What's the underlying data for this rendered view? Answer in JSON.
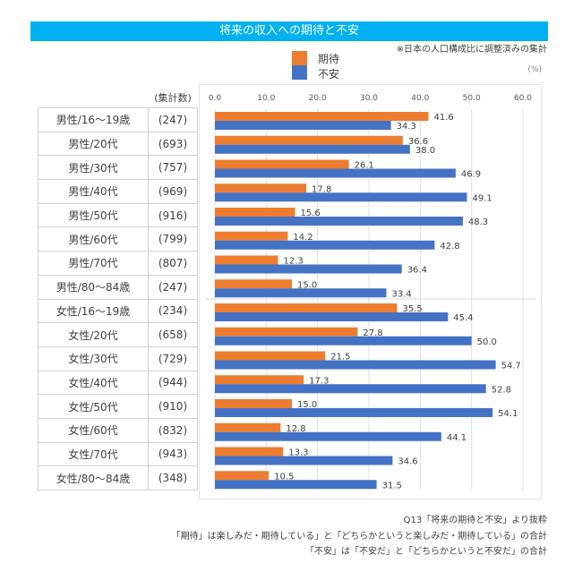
{
  "header": {
    "title": "将来の収入への期待と不安",
    "note": "※日本の人口構成比に調整済みの集計",
    "unit": "(%)",
    "count_header": "(集計数)"
  },
  "legend": [
    {
      "label": "期待",
      "color": "#ed7d31"
    },
    {
      "label": "不安",
      "color": "#4472c4"
    }
  ],
  "rows": [
    {
      "group": "男性/16～19歳",
      "n": "(247)"
    },
    {
      "group": "男性/20代",
      "n": "(693)"
    },
    {
      "group": "男性/30代",
      "n": "(757)"
    },
    {
      "group": "男性/40代",
      "n": "(969)"
    },
    {
      "group": "男性/50代",
      "n": "(916)"
    },
    {
      "group": "男性/60代",
      "n": "(799)"
    },
    {
      "group": "男性/70代",
      "n": "(807)"
    },
    {
      "group": "男性/80～84歳",
      "n": "(247)"
    },
    {
      "group": "女性/16～19歳",
      "n": "(234)"
    },
    {
      "group": "女性/20代",
      "n": "(658)"
    },
    {
      "group": "女性/30代",
      "n": "(729)"
    },
    {
      "group": "女性/40代",
      "n": "(944)"
    },
    {
      "group": "女性/50代",
      "n": "(910)"
    },
    {
      "group": "女性/60代",
      "n": "(832)"
    },
    {
      "group": "女性/70代",
      "n": "(943)"
    },
    {
      "group": "女性/80～84歳",
      "n": "(348)"
    }
  ],
  "chart_data": {
    "type": "bar",
    "orientation": "horizontal",
    "title": "将来の収入への期待と不安",
    "xlabel": "(%)",
    "ylabel": "",
    "xlim": [
      0,
      60
    ],
    "xticks": [
      "0.0",
      "10.0",
      "20.0",
      "30.0",
      "40.0",
      "50.0",
      "60.0"
    ],
    "grid": true,
    "legend_position": "top-center",
    "categories": [
      "男性/16～19歳",
      "男性/20代",
      "男性/30代",
      "男性/40代",
      "男性/50代",
      "男性/60代",
      "男性/70代",
      "男性/80～84歳",
      "女性/16～19歳",
      "女性/20代",
      "女性/30代",
      "女性/40代",
      "女性/50代",
      "女性/60代",
      "女性/70代",
      "女性/80～84歳"
    ],
    "series": [
      {
        "name": "期待",
        "color": "#ed7d31",
        "values": [
          41.6,
          36.6,
          26.1,
          17.8,
          15.6,
          14.2,
          12.3,
          15.0,
          35.5,
          27.8,
          21.5,
          17.3,
          15.0,
          12.8,
          13.3,
          10.5
        ]
      },
      {
        "name": "不安",
        "color": "#4472c4",
        "values": [
          34.3,
          38.0,
          46.9,
          49.1,
          48.3,
          42.8,
          36.4,
          33.4,
          45.4,
          50.0,
          54.7,
          52.8,
          54.1,
          44.1,
          34.6,
          31.5
        ]
      }
    ],
    "data_labels": true
  },
  "footnotes": [
    "Q13「将来の期待と不安」より抜粋",
    "「期待」は楽しみだ・期待している」と「どちらかというと楽しみだ・期待している」の合計",
    "「不安」は「不安だ」と「どちらかというと不安だ」の合計"
  ]
}
